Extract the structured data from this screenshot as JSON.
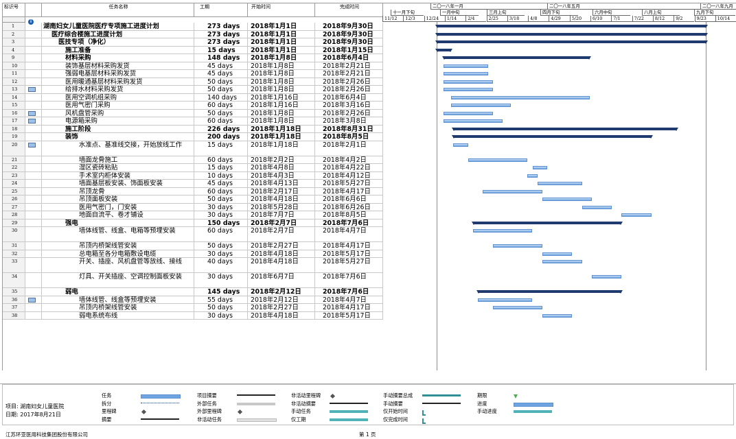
{
  "columns": {
    "id": "标识号",
    "indicator": "",
    "name": "任务名称",
    "duration": "工期",
    "start": "开始时间",
    "finish": "完成时间"
  },
  "timescale": {
    "top": [
      "二〇一八年一月",
      "二〇一八年五月",
      "二〇一八年九月"
    ],
    "middle": [
      "十一月下旬",
      "一月中旬",
      "三月上旬",
      "四月下旬",
      "六月中旬",
      "八月上旬",
      "九月下旬"
    ],
    "bottom": [
      "11/12",
      "12/3",
      "12/24",
      "1/14",
      "2/4",
      "2/25",
      "3/18",
      "4/8",
      "4/29",
      "5/20",
      "6/10",
      "7/1",
      "7/22",
      "8/12",
      "9/2",
      "9/23",
      "10/14"
    ]
  },
  "tasks": [
    {
      "id": "1",
      "name": "湖南妇女儿童医院医疗专项施工进度计划",
      "duration": "273 days",
      "start": "2018年1月1日",
      "finish": "2018年9月30日",
      "bold": true,
      "level": 0
    },
    {
      "id": "2",
      "name": "医疗综合楼施工进度计划",
      "duration": "273 days",
      "start": "2018年1月1日",
      "finish": "2018年9月30日",
      "bold": true,
      "level": 1
    },
    {
      "id": "3",
      "name": "医技专项（净化）",
      "duration": "273 days",
      "start": "2018年1月1日",
      "finish": "2018年9月30日",
      "bold": true,
      "level": 2
    },
    {
      "id": "4",
      "name": "施工准备",
      "duration": "15 days",
      "start": "2018年1月1日",
      "finish": "2018年1月15日",
      "bold": true,
      "level": 3
    },
    {
      "id": "9",
      "name": "材料采购",
      "duration": "148 days",
      "start": "2018年1月8日",
      "finish": "2018年6月4日",
      "bold": true,
      "level": 3
    },
    {
      "id": "10",
      "name": "装饰基层材料采购发货",
      "duration": "45 days",
      "start": "2018年1月8日",
      "finish": "2018年2月21日",
      "level": 4
    },
    {
      "id": "11",
      "name": "强弱电基层材料采购发货",
      "duration": "45 days",
      "start": "2018年1月8日",
      "finish": "2018年2月21日",
      "level": 4
    },
    {
      "id": "12",
      "name": "医用暖通基层材料采购发货",
      "duration": "50 days",
      "start": "2018年1月8日",
      "finish": "2018年2月26日",
      "level": 4
    },
    {
      "id": "13",
      "name": "给排水材料采购发货",
      "duration": "50 days",
      "start": "2018年1月8日",
      "finish": "2018年2月26日",
      "level": 4,
      "note": true
    },
    {
      "id": "14",
      "name": "医用空调机组采购",
      "duration": "140 days",
      "start": "2018年1月16日",
      "finish": "2018年6月4日",
      "level": 4
    },
    {
      "id": "15",
      "name": "医用气密门采购",
      "duration": "60 days",
      "start": "2018年1月16日",
      "finish": "2018年3月16日",
      "level": 4
    },
    {
      "id": "16",
      "name": "风机盘管采购",
      "duration": "50 days",
      "start": "2018年1月8日",
      "finish": "2018年2月26日",
      "level": 4,
      "note": true
    },
    {
      "id": "17",
      "name": "电源箱采购",
      "duration": "60 days",
      "start": "2018年1月8日",
      "finish": "2018年3月8日",
      "level": 4,
      "note": true
    },
    {
      "id": "18",
      "name": "施工阶段",
      "duration": "226 days",
      "start": "2018年1月18日",
      "finish": "2018年8月31日",
      "bold": true,
      "level": 3
    },
    {
      "id": "19",
      "name": "装饰",
      "duration": "200 days",
      "start": "2018年1月18日",
      "finish": "2018年8月5日",
      "bold": true,
      "level": 4
    },
    {
      "id": "20",
      "name": "水准点、基准线交接，开始放线工作",
      "duration": "15 days",
      "start": "2018年1月18日",
      "finish": "2018年2月1日",
      "level": 5,
      "note": true,
      "tall": true
    },
    {
      "id": "21",
      "name": "墙面龙骨施工",
      "duration": "60 days",
      "start": "2018年2月2日",
      "finish": "2018年4月2日",
      "level": 5
    },
    {
      "id": "22",
      "name": "湿区瓷砖粘贴",
      "duration": "15 days",
      "start": "2018年4月8日",
      "finish": "2018年4月22日",
      "level": 5
    },
    {
      "id": "23",
      "name": "手术室内柜体安装",
      "duration": "10 days",
      "start": "2018年4月3日",
      "finish": "2018年4月12日",
      "level": 5
    },
    {
      "id": "24",
      "name": "墙面基层板安装、饰面板安装",
      "duration": "45 days",
      "start": "2018年4月13日",
      "finish": "2018年5月27日",
      "level": 5
    },
    {
      "id": "25",
      "name": "吊顶龙骨",
      "duration": "60 days",
      "start": "2018年2月17日",
      "finish": "2018年4月17日",
      "level": 5
    },
    {
      "id": "26",
      "name": "吊顶面板安装",
      "duration": "50 days",
      "start": "2018年4月18日",
      "finish": "2018年6月6日",
      "level": 5
    },
    {
      "id": "27",
      "name": "医用气密门，门安装",
      "duration": "30 days",
      "start": "2018年5月28日",
      "finish": "2018年6月26日",
      "level": 5
    },
    {
      "id": "28",
      "name": "地面自流平、卷才铺设",
      "duration": "30 days",
      "start": "2018年7月7日",
      "finish": "2018年8月5日",
      "level": 5
    },
    {
      "id": "29",
      "name": "强电",
      "duration": "150 days",
      "start": "2018年2月7日",
      "finish": "2018年7月6日",
      "bold": true,
      "level": 4
    },
    {
      "id": "30",
      "name": "墙体线管、线盒、电箱等预埋安装",
      "duration": "60 days",
      "start": "2018年2月7日",
      "finish": "2018年4月7日",
      "level": 5,
      "tall": true
    },
    {
      "id": "31",
      "name": "吊顶内桥架线管安装",
      "duration": "50 days",
      "start": "2018年2月27日",
      "finish": "2018年4月17日",
      "level": 5
    },
    {
      "id": "32",
      "name": "总电箱至各分电箱敷设电缆",
      "duration": "30 days",
      "start": "2018年4月18日",
      "finish": "2018年5月17日",
      "level": 5
    },
    {
      "id": "33",
      "name": "开关、插座、风机盘管等放线、接线",
      "duration": "40 days",
      "start": "2018年4月18日",
      "finish": "2018年5月27日",
      "level": 5,
      "tall": true
    },
    {
      "id": "34",
      "name": "灯具、开关插座、空调控制面板安装",
      "duration": "30 days",
      "start": "2018年6月7日",
      "finish": "2018年7月6日",
      "level": 5,
      "tall": true
    },
    {
      "id": "35",
      "name": "弱电",
      "duration": "145 days",
      "start": "2018年2月12日",
      "finish": "2018年7月6日",
      "bold": true,
      "level": 4
    },
    {
      "id": "36",
      "name": "墙体线管、线盒等预埋安装",
      "duration": "55 days",
      "start": "2018年2月12日",
      "finish": "2018年4月7日",
      "level": 5,
      "note": true
    },
    {
      "id": "37",
      "name": "吊顶内桥架线管安装",
      "duration": "50 days",
      "start": "2018年2月27日",
      "finish": "2018年4月17日",
      "level": 5
    },
    {
      "id": "38",
      "name": "弱电系统布线",
      "duration": "30 days",
      "start": "2018年4月18日",
      "finish": "2018年5月17日",
      "level": 5
    }
  ],
  "legend": {
    "project": "项目: 湖南妇女儿童医院",
    "date": "日期: 2017年8月21日",
    "col1": [
      "任务",
      "拆分",
      "里程碑",
      "摘要"
    ],
    "col2": [
      "项目摘要",
      "外部任务",
      "外部里程碑",
      "非活动任务"
    ],
    "col3": [
      "非活动里程碑",
      "非活动摘要",
      "手动任务",
      "仅工期"
    ],
    "col4": [
      "手动摘要总成",
      "手动摘要",
      "仅开始时间",
      "仅完成时间"
    ],
    "col5": [
      "期限",
      "进度",
      "手动进度"
    ]
  },
  "footer": {
    "company": "江苏环亚医用科技集团股份有限公司",
    "page": "第 1 页"
  },
  "colors": {
    "task_bar": "#6ea4e0",
    "summary_bar": "#1f3a6e",
    "link": "#3b78d0"
  }
}
